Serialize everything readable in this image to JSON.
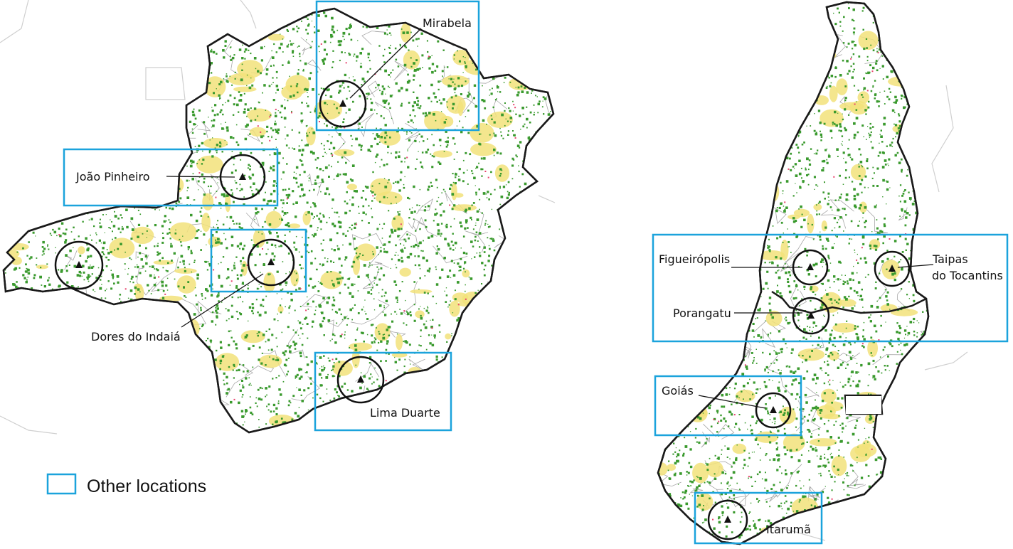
{
  "colors": {
    "forest": "#3a9a2e",
    "cropland": "#f2e27a",
    "urban": "#e8456e",
    "border": "#1a1a1a",
    "municipal_lines": "#a8a8a8",
    "highlight_box": "#1ba3dc",
    "marker_circle": "#111111"
  },
  "legend": {
    "label": "Other locations",
    "swatch_color": "#1ba3dc"
  },
  "locations": [
    {
      "name": "Mirabela",
      "state": "left",
      "symbol": "triangle-icon"
    },
    {
      "name": "João Pinheiro",
      "state": "left",
      "symbol": "triangle-icon"
    },
    {
      "name": "Dores do Indaiá",
      "state": "left",
      "symbol": "triangle-icon"
    },
    {
      "name": "Lima Duarte",
      "state": "left",
      "symbol": "triangle-icon"
    },
    {
      "name": "Figueirópolis",
      "state": "right",
      "symbol": "triangle-icon"
    },
    {
      "name": "Taipas",
      "name_line2": "do Tocantins",
      "state": "right",
      "symbol": "triangle-icon"
    },
    {
      "name": "Porangatu",
      "state": "right",
      "symbol": "triangle-icon"
    },
    {
      "name": "Goiás",
      "state": "right",
      "symbol": "triangle-icon"
    },
    {
      "name": "Itarumã",
      "state": "right",
      "symbol": "triangle-icon"
    }
  ]
}
